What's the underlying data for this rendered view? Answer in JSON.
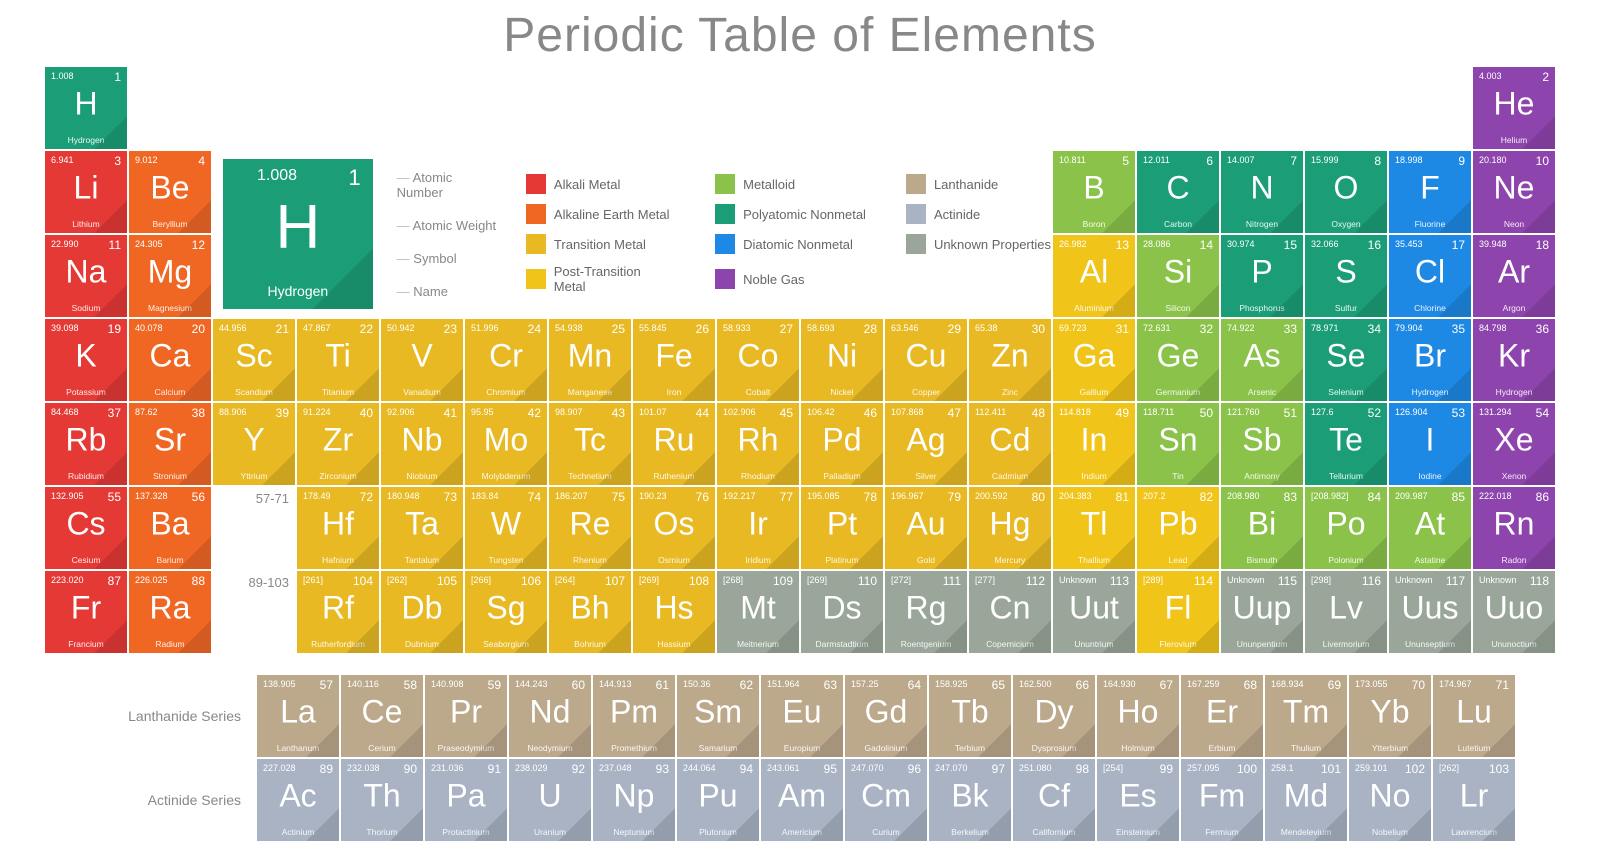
{
  "title": "Periodic Table of Elements",
  "colors": {
    "alkali": "#e53935",
    "alkaline": "#f06724",
    "transition": "#e8b923",
    "post": "#f0c419",
    "metalloid": "#8bc34a",
    "poly": "#1b9e77",
    "diatomic": "#1e88e5",
    "noble": "#8e44ad",
    "lanth": "#bca98c",
    "actin": "#a9b3c4",
    "unknown": "#9aa69a"
  },
  "key": {
    "mass": "1.008",
    "num": "1",
    "sym": "H",
    "name": "Hydrogen",
    "labels": [
      "Atomic Number",
      "Atomic Weight",
      "Symbol",
      "Name"
    ]
  },
  "legend": [
    {
      "label": "Alkali Metal",
      "colorKey": "alkali"
    },
    {
      "label": "Metalloid",
      "colorKey": "metalloid"
    },
    {
      "label": "Lanthanide",
      "colorKey": "lanth"
    },
    {
      "label": "Alkaline Earth Metal",
      "colorKey": "alkaline"
    },
    {
      "label": "Polyatomic Nonmetal",
      "colorKey": "poly"
    },
    {
      "label": "Actinide",
      "colorKey": "actin"
    },
    {
      "label": "Transition Metal",
      "colorKey": "transition"
    },
    {
      "label": "Diatomic Nonmetal",
      "colorKey": "diatomic"
    },
    {
      "label": "Unknown Properties",
      "colorKey": "unknown"
    },
    {
      "label": "Post-Transition Metal",
      "colorKey": "post"
    },
    {
      "label": "Noble Gas",
      "colorKey": "noble"
    }
  ],
  "elements": [
    {
      "n": 1,
      "m": "1.008",
      "s": "H",
      "nm": "Hydrogen",
      "c": "poly",
      "row": 1,
      "col": 1
    },
    {
      "n": 2,
      "m": "4.003",
      "s": "He",
      "nm": "Helium",
      "c": "noble",
      "row": 1,
      "col": 18
    },
    {
      "n": 3,
      "m": "6.941",
      "s": "Li",
      "nm": "Lithium",
      "c": "alkali",
      "row": 2,
      "col": 1
    },
    {
      "n": 4,
      "m": "9.012",
      "s": "Be",
      "nm": "Beryllium",
      "c": "alkaline",
      "row": 2,
      "col": 2
    },
    {
      "n": 5,
      "m": "10.811",
      "s": "B",
      "nm": "Boron",
      "c": "metalloid",
      "row": 2,
      "col": 13
    },
    {
      "n": 6,
      "m": "12.011",
      "s": "C",
      "nm": "Carbon",
      "c": "poly",
      "row": 2,
      "col": 14
    },
    {
      "n": 7,
      "m": "14.007",
      "s": "N",
      "nm": "Nitrogen",
      "c": "poly",
      "row": 2,
      "col": 15
    },
    {
      "n": 8,
      "m": "15.999",
      "s": "O",
      "nm": "Oxygen",
      "c": "poly",
      "row": 2,
      "col": 16
    },
    {
      "n": 9,
      "m": "18.998",
      "s": "F",
      "nm": "Fluorine",
      "c": "diatomic",
      "row": 2,
      "col": 17
    },
    {
      "n": 10,
      "m": "20.180",
      "s": "Ne",
      "nm": "Neon",
      "c": "noble",
      "row": 2,
      "col": 18
    },
    {
      "n": 11,
      "m": "22.990",
      "s": "Na",
      "nm": "Sodium",
      "c": "alkali",
      "row": 3,
      "col": 1
    },
    {
      "n": 12,
      "m": "24.305",
      "s": "Mg",
      "nm": "Magnesium",
      "c": "alkaline",
      "row": 3,
      "col": 2
    },
    {
      "n": 13,
      "m": "26.982",
      "s": "Al",
      "nm": "Aluminium",
      "c": "post",
      "row": 3,
      "col": 13
    },
    {
      "n": 14,
      "m": "28.086",
      "s": "Si",
      "nm": "Silicon",
      "c": "metalloid",
      "row": 3,
      "col": 14
    },
    {
      "n": 15,
      "m": "30.974",
      "s": "P",
      "nm": "Phosphorus",
      "c": "poly",
      "row": 3,
      "col": 15
    },
    {
      "n": 16,
      "m": "32.066",
      "s": "S",
      "nm": "Sulfur",
      "c": "poly",
      "row": 3,
      "col": 16
    },
    {
      "n": 17,
      "m": "35.453",
      "s": "Cl",
      "nm": "Chlorine",
      "c": "diatomic",
      "row": 3,
      "col": 17
    },
    {
      "n": 18,
      "m": "39.948",
      "s": "Ar",
      "nm": "Argon",
      "c": "noble",
      "row": 3,
      "col": 18
    },
    {
      "n": 19,
      "m": "39.098",
      "s": "K",
      "nm": "Potassium",
      "c": "alkali",
      "row": 4,
      "col": 1
    },
    {
      "n": 20,
      "m": "40.078",
      "s": "Ca",
      "nm": "Calcium",
      "c": "alkaline",
      "row": 4,
      "col": 2
    },
    {
      "n": 21,
      "m": "44.956",
      "s": "Sc",
      "nm": "Scandium",
      "c": "transition",
      "row": 4,
      "col": 3
    },
    {
      "n": 22,
      "m": "47.867",
      "s": "Ti",
      "nm": "Titanium",
      "c": "transition",
      "row": 4,
      "col": 4
    },
    {
      "n": 23,
      "m": "50.942",
      "s": "V",
      "nm": "Vanadium",
      "c": "transition",
      "row": 4,
      "col": 5
    },
    {
      "n": 24,
      "m": "51.996",
      "s": "Cr",
      "nm": "Chromium",
      "c": "transition",
      "row": 4,
      "col": 6
    },
    {
      "n": 25,
      "m": "54.938",
      "s": "Mn",
      "nm": "Manganese",
      "c": "transition",
      "row": 4,
      "col": 7
    },
    {
      "n": 26,
      "m": "55.845",
      "s": "Fe",
      "nm": "Iron",
      "c": "transition",
      "row": 4,
      "col": 8
    },
    {
      "n": 27,
      "m": "58.933",
      "s": "Co",
      "nm": "Cobalt",
      "c": "transition",
      "row": 4,
      "col": 9
    },
    {
      "n": 28,
      "m": "58.693",
      "s": "Ni",
      "nm": "Nickel",
      "c": "transition",
      "row": 4,
      "col": 10
    },
    {
      "n": 29,
      "m": "63.546",
      "s": "Cu",
      "nm": "Copper",
      "c": "transition",
      "row": 4,
      "col": 11
    },
    {
      "n": 30,
      "m": "65.38",
      "s": "Zn",
      "nm": "Zinc",
      "c": "transition",
      "row": 4,
      "col": 12
    },
    {
      "n": 31,
      "m": "69.723",
      "s": "Ga",
      "nm": "Gallium",
      "c": "post",
      "row": 4,
      "col": 13
    },
    {
      "n": 32,
      "m": "72.631",
      "s": "Ge",
      "nm": "Germanium",
      "c": "metalloid",
      "row": 4,
      "col": 14
    },
    {
      "n": 33,
      "m": "74.922",
      "s": "As",
      "nm": "Arsenic",
      "c": "metalloid",
      "row": 4,
      "col": 15
    },
    {
      "n": 34,
      "m": "78.971",
      "s": "Se",
      "nm": "Selenium",
      "c": "poly",
      "row": 4,
      "col": 16
    },
    {
      "n": 35,
      "m": "79.904",
      "s": "Br",
      "nm": "Hydrogen",
      "c": "diatomic",
      "row": 4,
      "col": 17
    },
    {
      "n": 36,
      "m": "84.798",
      "s": "Kr",
      "nm": "Hydrogen",
      "c": "noble",
      "row": 4,
      "col": 18
    },
    {
      "n": 37,
      "m": "84.468",
      "s": "Rb",
      "nm": "Rubidium",
      "c": "alkali",
      "row": 5,
      "col": 1
    },
    {
      "n": 38,
      "m": "87.62",
      "s": "Sr",
      "nm": "Stronium",
      "c": "alkaline",
      "row": 5,
      "col": 2
    },
    {
      "n": 39,
      "m": "88.906",
      "s": "Y",
      "nm": "Yttrium",
      "c": "transition",
      "row": 5,
      "col": 3
    },
    {
      "n": 40,
      "m": "91.224",
      "s": "Zr",
      "nm": "Zirconium",
      "c": "transition",
      "row": 5,
      "col": 4
    },
    {
      "n": 41,
      "m": "92.906",
      "s": "Nb",
      "nm": "Niobium",
      "c": "transition",
      "row": 5,
      "col": 5
    },
    {
      "n": 42,
      "m": "95.95",
      "s": "Mo",
      "nm": "Molybdenum",
      "c": "transition",
      "row": 5,
      "col": 6
    },
    {
      "n": 43,
      "m": "98.907",
      "s": "Tc",
      "nm": "Technetium",
      "c": "transition",
      "row": 5,
      "col": 7
    },
    {
      "n": 44,
      "m": "101.07",
      "s": "Ru",
      "nm": "Ruthenium",
      "c": "transition",
      "row": 5,
      "col": 8
    },
    {
      "n": 45,
      "m": "102.906",
      "s": "Rh",
      "nm": "Rhodium",
      "c": "transition",
      "row": 5,
      "col": 9
    },
    {
      "n": 46,
      "m": "106.42",
      "s": "Pd",
      "nm": "Palladium",
      "c": "transition",
      "row": 5,
      "col": 10
    },
    {
      "n": 47,
      "m": "107.868",
      "s": "Ag",
      "nm": "Silver",
      "c": "transition",
      "row": 5,
      "col": 11
    },
    {
      "n": 48,
      "m": "112.411",
      "s": "Cd",
      "nm": "Cadmium",
      "c": "transition",
      "row": 5,
      "col": 12
    },
    {
      "n": 49,
      "m": "114.818",
      "s": "In",
      "nm": "Indium",
      "c": "post",
      "row": 5,
      "col": 13
    },
    {
      "n": 50,
      "m": "118.711",
      "s": "Sn",
      "nm": "Tin",
      "c": "metalloid",
      "row": 5,
      "col": 14
    },
    {
      "n": 51,
      "m": "121.760",
      "s": "Sb",
      "nm": "Antimony",
      "c": "metalloid",
      "row": 5,
      "col": 15
    },
    {
      "n": 52,
      "m": "127.6",
      "s": "Te",
      "nm": "Tellurium",
      "c": "poly",
      "row": 5,
      "col": 16
    },
    {
      "n": 53,
      "m": "126.904",
      "s": "I",
      "nm": "Iodine",
      "c": "diatomic",
      "row": 5,
      "col": 17
    },
    {
      "n": 54,
      "m": "131.294",
      "s": "Xe",
      "nm": "Xenon",
      "c": "noble",
      "row": 5,
      "col": 18
    },
    {
      "n": 55,
      "m": "132.905",
      "s": "Cs",
      "nm": "Cesium",
      "c": "alkali",
      "row": 6,
      "col": 1
    },
    {
      "n": 56,
      "m": "137.328",
      "s": "Ba",
      "nm": "Barium",
      "c": "alkaline",
      "row": 6,
      "col": 2
    },
    {
      "n": "57-71",
      "m": "",
      "s": "",
      "nm": "",
      "c": "placeholder",
      "row": 6,
      "col": 3,
      "ph": true
    },
    {
      "n": 72,
      "m": "178.49",
      "s": "Hf",
      "nm": "Hafnium",
      "c": "transition",
      "row": 6,
      "col": 4
    },
    {
      "n": 73,
      "m": "180.948",
      "s": "Ta",
      "nm": "Tantalum",
      "c": "transition",
      "row": 6,
      "col": 5
    },
    {
      "n": 74,
      "m": "183.84",
      "s": "W",
      "nm": "Tungsten",
      "c": "transition",
      "row": 6,
      "col": 6
    },
    {
      "n": 75,
      "m": "186.207",
      "s": "Re",
      "nm": "Rhenium",
      "c": "transition",
      "row": 6,
      "col": 7
    },
    {
      "n": 76,
      "m": "190.23",
      "s": "Os",
      "nm": "Osmium",
      "c": "transition",
      "row": 6,
      "col": 8
    },
    {
      "n": 77,
      "m": "192.217",
      "s": "Ir",
      "nm": "Iridium",
      "c": "transition",
      "row": 6,
      "col": 9
    },
    {
      "n": 78,
      "m": "195.085",
      "s": "Pt",
      "nm": "Platinum",
      "c": "transition",
      "row": 6,
      "col": 10
    },
    {
      "n": 79,
      "m": "196.967",
      "s": "Au",
      "nm": "Gold",
      "c": "transition",
      "row": 6,
      "col": 11
    },
    {
      "n": 80,
      "m": "200.592",
      "s": "Hg",
      "nm": "Mercury",
      "c": "transition",
      "row": 6,
      "col": 12
    },
    {
      "n": 81,
      "m": "204.383",
      "s": "Tl",
      "nm": "Thallium",
      "c": "post",
      "row": 6,
      "col": 13
    },
    {
      "n": 82,
      "m": "207.2",
      "s": "Pb",
      "nm": "Lead",
      "c": "post",
      "row": 6,
      "col": 14
    },
    {
      "n": 83,
      "m": "208.980",
      "s": "Bi",
      "nm": "Bismuth",
      "c": "metalloid",
      "row": 6,
      "col": 15
    },
    {
      "n": 84,
      "m": "[208.982]",
      "s": "Po",
      "nm": "Polonium",
      "c": "metalloid",
      "row": 6,
      "col": 16
    },
    {
      "n": 85,
      "m": "209.987",
      "s": "At",
      "nm": "Astatine",
      "c": "metalloid",
      "row": 6,
      "col": 17
    },
    {
      "n": 86,
      "m": "222.018",
      "s": "Rn",
      "nm": "Radon",
      "c": "noble",
      "row": 6,
      "col": 18
    },
    {
      "n": 87,
      "m": "223.020",
      "s": "Fr",
      "nm": "Francium",
      "c": "alkali",
      "row": 7,
      "col": 1
    },
    {
      "n": 88,
      "m": "226.025",
      "s": "Ra",
      "nm": "Radium",
      "c": "alkaline",
      "row": 7,
      "col": 2
    },
    {
      "n": "89-103",
      "m": "",
      "s": "",
      "nm": "",
      "c": "placeholder",
      "row": 7,
      "col": 3,
      "ph": true
    },
    {
      "n": 104,
      "m": "[261]",
      "s": "Rf",
      "nm": "Rutherfordium",
      "c": "transition",
      "row": 7,
      "col": 4
    },
    {
      "n": 105,
      "m": "[262]",
      "s": "Db",
      "nm": "Dubnium",
      "c": "transition",
      "row": 7,
      "col": 5
    },
    {
      "n": 106,
      "m": "[266]",
      "s": "Sg",
      "nm": "Seaborgium",
      "c": "transition",
      "row": 7,
      "col": 6
    },
    {
      "n": 107,
      "m": "[264]",
      "s": "Bh",
      "nm": "Bohrium",
      "c": "transition",
      "row": 7,
      "col": 7
    },
    {
      "n": 108,
      "m": "[269]",
      "s": "Hs",
      "nm": "Hassium",
      "c": "transition",
      "row": 7,
      "col": 8
    },
    {
      "n": 109,
      "m": "[268]",
      "s": "Mt",
      "nm": "Meitnerium",
      "c": "unknown",
      "row": 7,
      "col": 9
    },
    {
      "n": 110,
      "m": "[269]",
      "s": "Ds",
      "nm": "Darmstadtium",
      "c": "unknown",
      "row": 7,
      "col": 10
    },
    {
      "n": 111,
      "m": "[272]",
      "s": "Rg",
      "nm": "Roentgenium",
      "c": "unknown",
      "row": 7,
      "col": 11
    },
    {
      "n": 112,
      "m": "[277]",
      "s": "Cn",
      "nm": "Copernicium",
      "c": "unknown",
      "row": 7,
      "col": 12
    },
    {
      "n": 113,
      "m": "Unknown",
      "s": "Uut",
      "nm": "Ununtrium",
      "c": "unknown",
      "row": 7,
      "col": 13
    },
    {
      "n": 114,
      "m": "[289]",
      "s": "Fl",
      "nm": "Flerovium",
      "c": "post",
      "row": 7,
      "col": 14
    },
    {
      "n": 115,
      "m": "Unknown",
      "s": "Uup",
      "nm": "Ununpentium",
      "c": "unknown",
      "row": 7,
      "col": 15
    },
    {
      "n": 116,
      "m": "[298]",
      "s": "Lv",
      "nm": "Livermorium",
      "c": "unknown",
      "row": 7,
      "col": 16
    },
    {
      "n": 117,
      "m": "Unknown",
      "s": "Uus",
      "nm": "Ununseptium",
      "c": "unknown",
      "row": 7,
      "col": 17
    },
    {
      "n": 118,
      "m": "Unknown",
      "s": "Uuo",
      "nm": "Ununoctium",
      "c": "unknown",
      "row": 7,
      "col": 18
    }
  ],
  "lanth_label": "Lanthanide Series",
  "actin_label": "Actinide Series",
  "lanth": [
    {
      "n": 57,
      "m": "138.905",
      "s": "La",
      "nm": "Lanthanum"
    },
    {
      "n": 58,
      "m": "140.116",
      "s": "Ce",
      "nm": "Cerium"
    },
    {
      "n": 59,
      "m": "140.908",
      "s": "Pr",
      "nm": "Praseodymium"
    },
    {
      "n": 60,
      "m": "144.243",
      "s": "Nd",
      "nm": "Neodymium"
    },
    {
      "n": 61,
      "m": "144.913",
      "s": "Pm",
      "nm": "Promethium"
    },
    {
      "n": 62,
      "m": "150.36",
      "s": "Sm",
      "nm": "Samarium"
    },
    {
      "n": 63,
      "m": "151.964",
      "s": "Eu",
      "nm": "Europium"
    },
    {
      "n": 64,
      "m": "157.25",
      "s": "Gd",
      "nm": "Gadolinium"
    },
    {
      "n": 65,
      "m": "158.925",
      "s": "Tb",
      "nm": "Terbium"
    },
    {
      "n": 66,
      "m": "162.500",
      "s": "Dy",
      "nm": "Dysprosium"
    },
    {
      "n": 67,
      "m": "164.930",
      "s": "Ho",
      "nm": "Holmium"
    },
    {
      "n": 68,
      "m": "167.259",
      "s": "Er",
      "nm": "Erbium"
    },
    {
      "n": 69,
      "m": "168.934",
      "s": "Tm",
      "nm": "Thulium"
    },
    {
      "n": 70,
      "m": "173.055",
      "s": "Yb",
      "nm": "Ytterbium"
    },
    {
      "n": 71,
      "m": "174.967",
      "s": "Lu",
      "nm": "Lutetium"
    }
  ],
  "actin": [
    {
      "n": 89,
      "m": "227.028",
      "s": "Ac",
      "nm": "Actinium"
    },
    {
      "n": 90,
      "m": "232.038",
      "s": "Th",
      "nm": "Thorium"
    },
    {
      "n": 91,
      "m": "231.036",
      "s": "Pa",
      "nm": "Protactinium"
    },
    {
      "n": 92,
      "m": "238.029",
      "s": "U",
      "nm": "Uranium"
    },
    {
      "n": 93,
      "m": "237.048",
      "s": "Np",
      "nm": "Neptunium"
    },
    {
      "n": 94,
      "m": "244.064",
      "s": "Pu",
      "nm": "Plutonium"
    },
    {
      "n": 95,
      "m": "243.061",
      "s": "Am",
      "nm": "Americium"
    },
    {
      "n": 96,
      "m": "247.070",
      "s": "Cm",
      "nm": "Curium"
    },
    {
      "n": 97,
      "m": "247.070",
      "s": "Bk",
      "nm": "Berkelium"
    },
    {
      "n": 98,
      "m": "251.080",
      "s": "Cf",
      "nm": "Californium"
    },
    {
      "n": 99,
      "m": "[254]",
      "s": "Es",
      "nm": "Einsteinium"
    },
    {
      "n": 100,
      "m": "257.095",
      "s": "Fm",
      "nm": "Fermium"
    },
    {
      "n": 101,
      "m": "258.1",
      "s": "Md",
      "nm": "Mendelevium"
    },
    {
      "n": 102,
      "m": "259.101",
      "s": "No",
      "nm": "Nobelium"
    },
    {
      "n": 103,
      "m": "[262]",
      "s": "Lr",
      "nm": "Lawrencium"
    }
  ]
}
